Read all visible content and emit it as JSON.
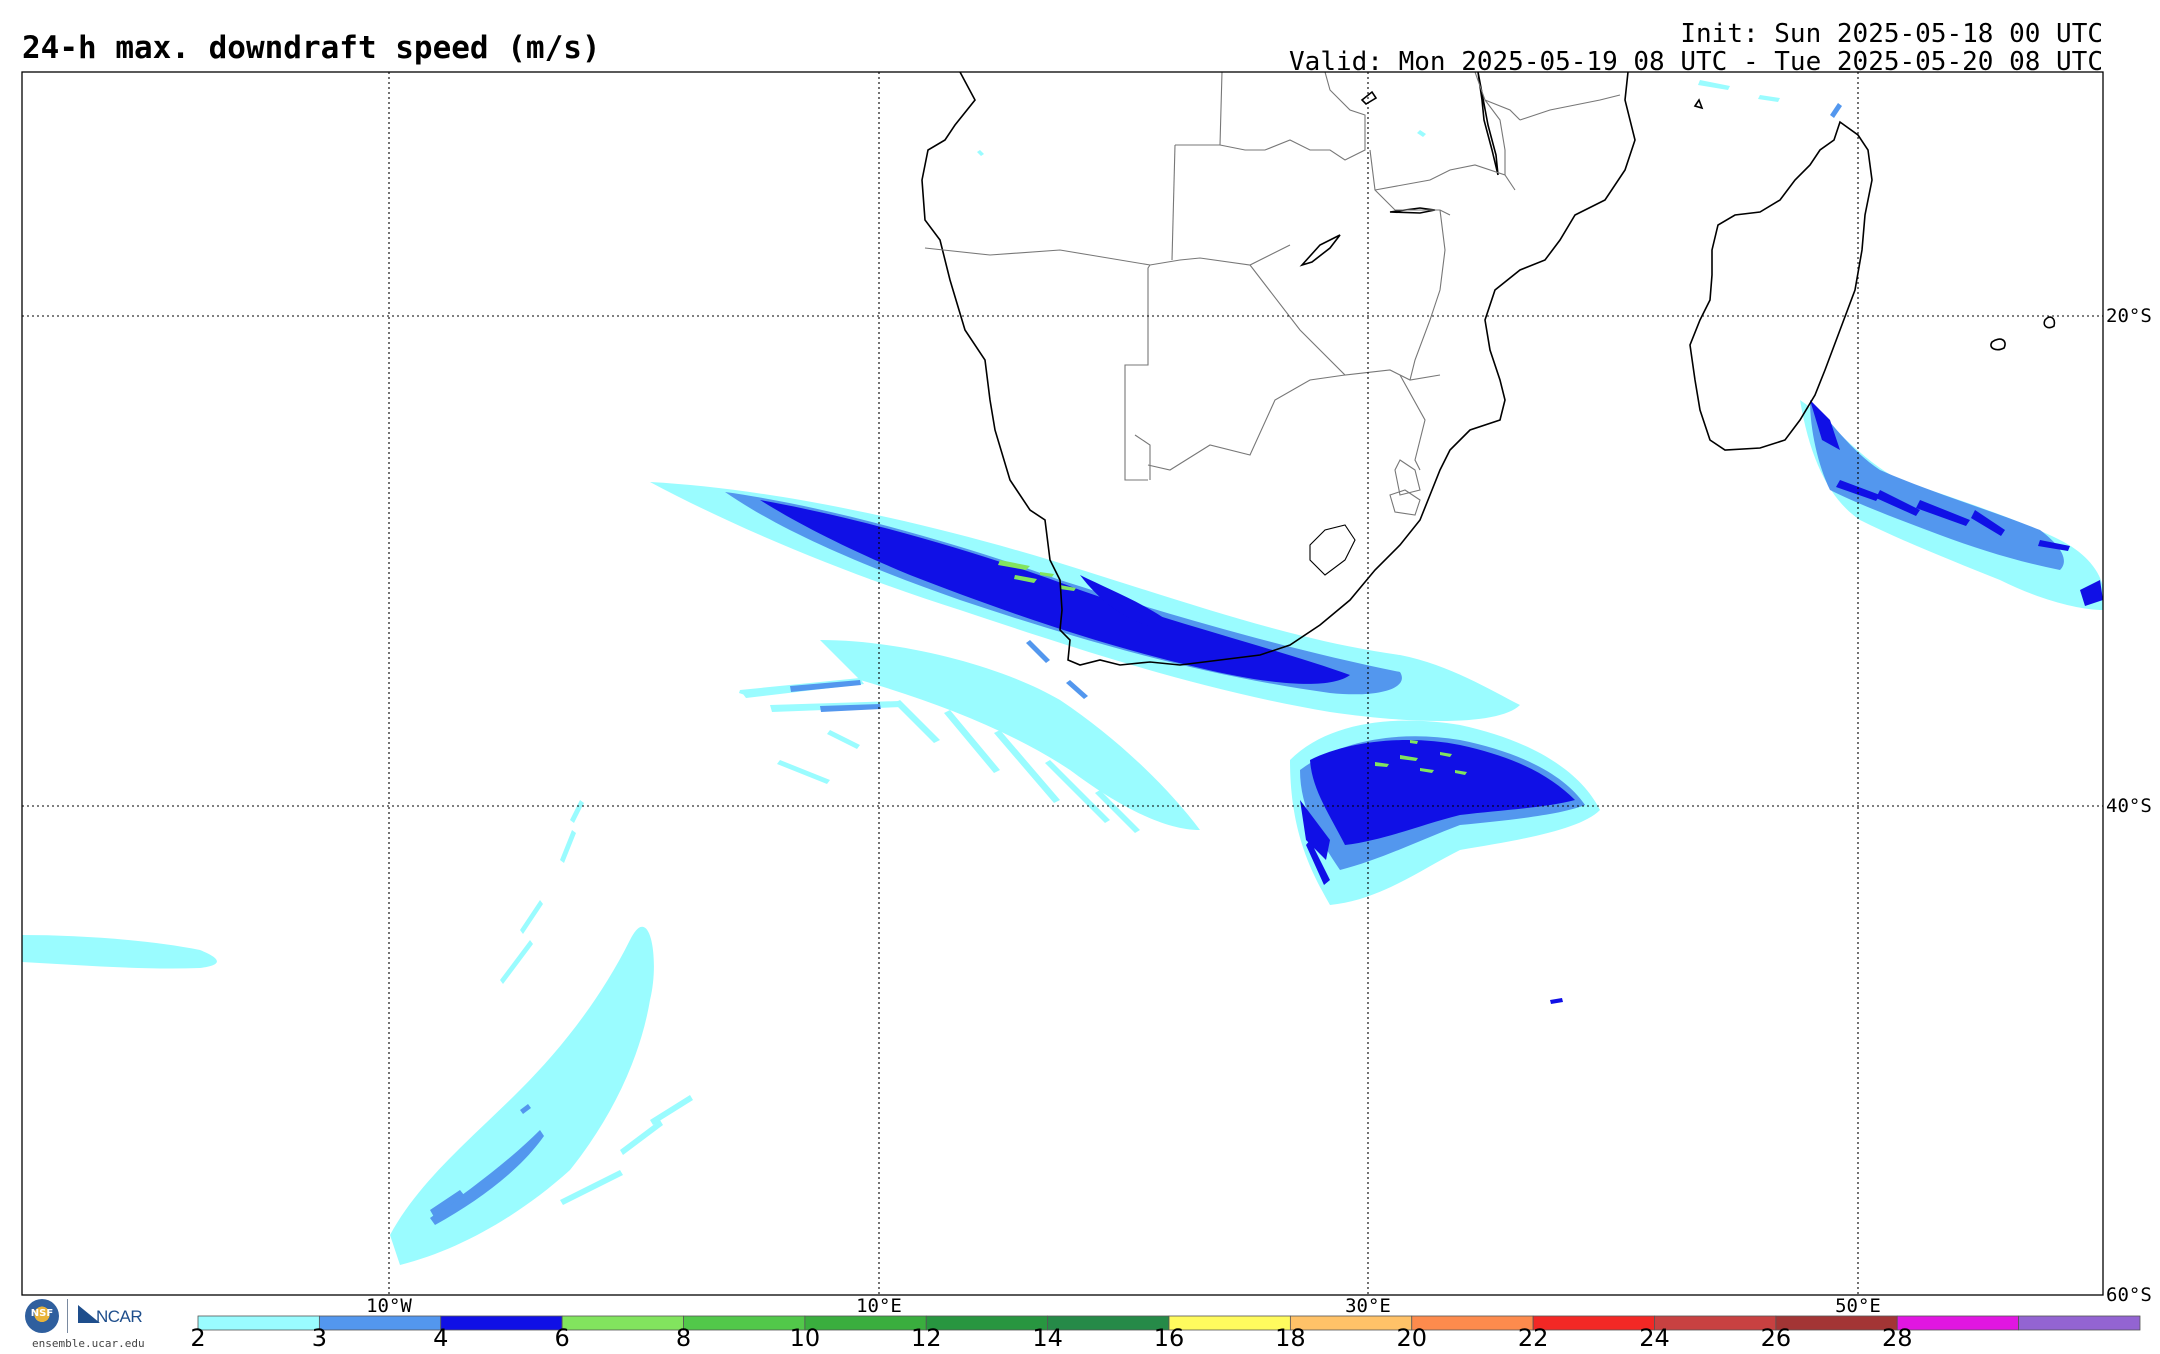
{
  "title": "24-h max. downdraft speed (m/s)",
  "init_line": "Init: Sun 2025-05-18 00 UTC",
  "valid_line": "Valid: Mon 2025-05-19 08 UTC - Tue 2025-05-20 08 UTC",
  "map": {
    "projection": "cylindrical equidistant",
    "lon_range": [
      -25,
      60
    ],
    "lat_range": [
      -60,
      -10
    ],
    "gridlines": {
      "lons": [
        -10,
        10,
        30,
        50
      ],
      "lats": [
        -20,
        -40,
        -60
      ]
    },
    "lon_labels": [
      "10°W",
      "10°E",
      "30°E",
      "50°E"
    ],
    "lat_labels": [
      "20°S",
      "40°S",
      "60°S"
    ]
  },
  "colorbar": {
    "ticks": [
      "2",
      "3",
      "4",
      "6",
      "8",
      "10",
      "12",
      "14",
      "16",
      "18",
      "20",
      "22",
      "24",
      "26",
      "28"
    ],
    "colors": [
      "#9afcff",
      "#5397ee",
      "#1010e6",
      "#82e45e",
      "#52c84a",
      "#3aae3e",
      "#289640",
      "#268a48",
      "#fffb5e",
      "#ffc268",
      "#fd8b4d",
      "#f32825",
      "#c84141",
      "#a33535",
      "#e116e1",
      "#9364d2"
    ]
  },
  "logos": {
    "nsf": "NSF",
    "ncar": "NCAR",
    "url": "ensemble.ucar.edu"
  }
}
